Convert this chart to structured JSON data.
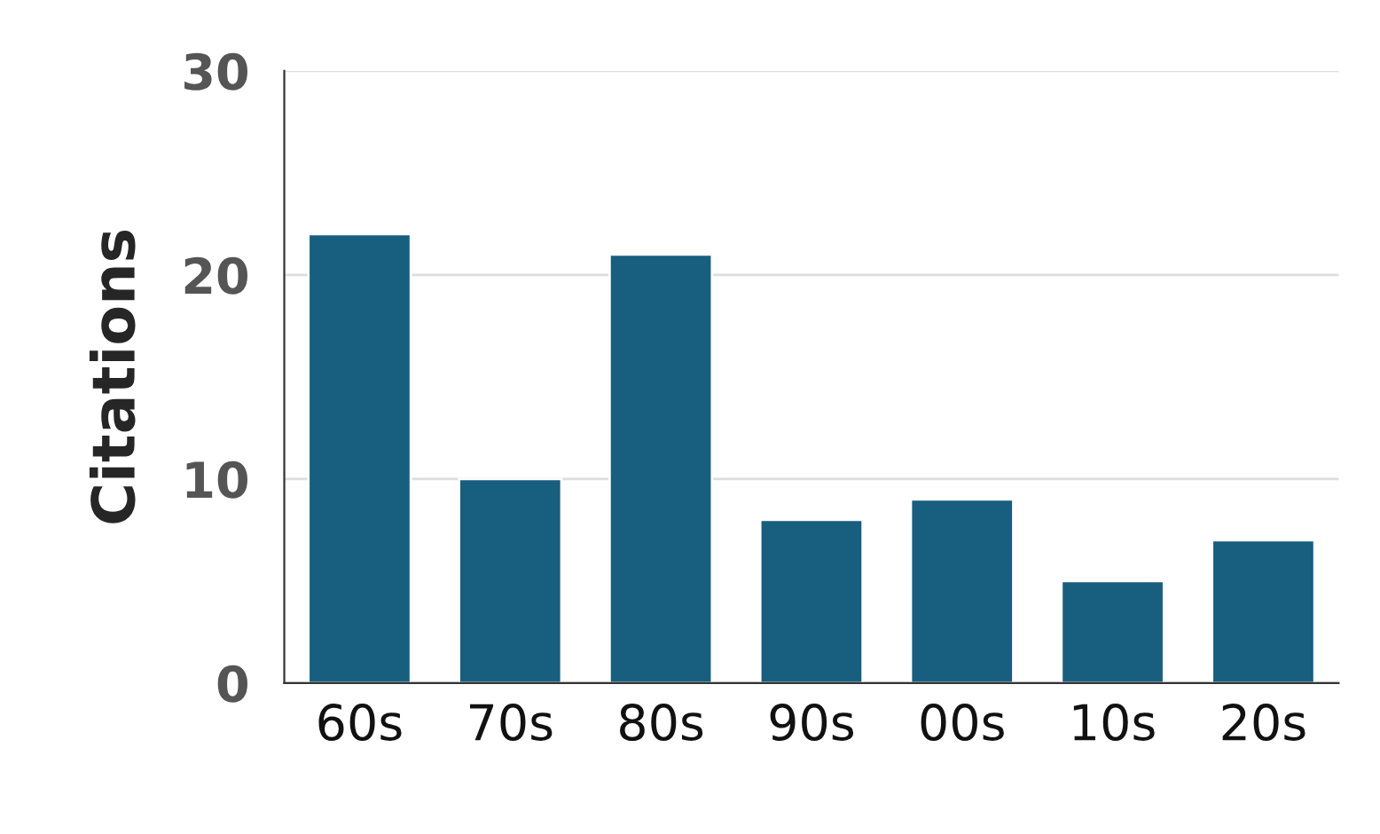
{
  "chart_data": {
    "type": "bar",
    "ylabel": "Citations",
    "categories": [
      "60s",
      "70s",
      "80s",
      "90s",
      "00s",
      "10s",
      "20s"
    ],
    "values": [
      22,
      10,
      21,
      8,
      9,
      5,
      7
    ],
    "color": "#175e7f",
    "ylim": [
      0,
      30
    ],
    "yticks": [
      0,
      10,
      20,
      30
    ],
    "grid": "y",
    "legend": false
  }
}
